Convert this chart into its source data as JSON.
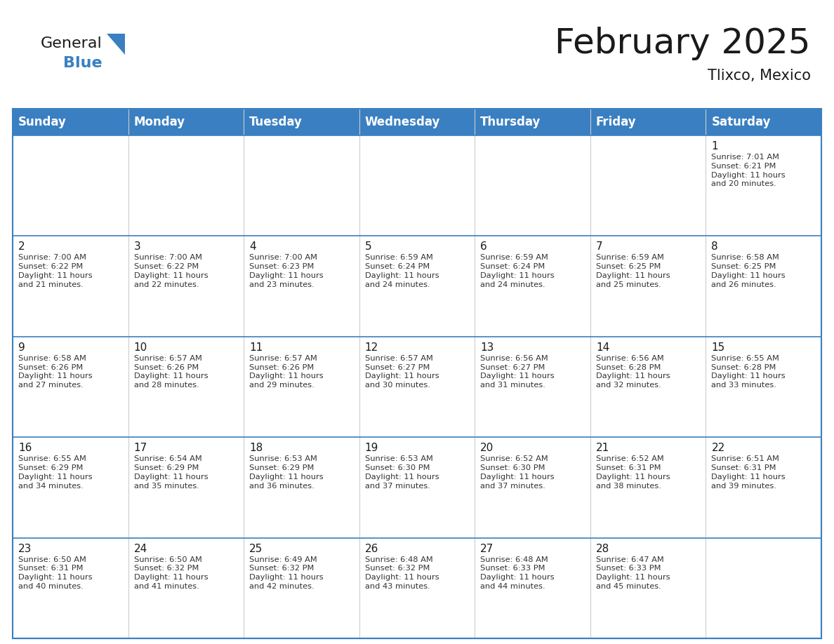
{
  "title": "February 2025",
  "subtitle": "Tlixco, Mexico",
  "header_bg_color": "#3a7fc1",
  "header_text_color": "#ffffff",
  "border_color": "#3a7fc1",
  "row_sep_color": "#3a7fc1",
  "col_sep_color": "#cccccc",
  "day_headers": [
    "Sunday",
    "Monday",
    "Tuesday",
    "Wednesday",
    "Thursday",
    "Friday",
    "Saturday"
  ],
  "title_fontsize": 36,
  "subtitle_fontsize": 15,
  "header_fontsize": 12,
  "day_num_fontsize": 11,
  "cell_text_fontsize": 8.2,
  "logo_general_color": "#1a1a1a",
  "logo_blue_color": "#3a7fc1",
  "logo_triangle_color": "#3a7fc1",
  "calendar_data": [
    [
      {
        "day": null
      },
      {
        "day": null
      },
      {
        "day": null
      },
      {
        "day": null
      },
      {
        "day": null
      },
      {
        "day": null
      },
      {
        "day": 1,
        "sunrise": "7:01 AM",
        "sunset": "6:21 PM",
        "daylight": "11 hours and 20 minutes."
      }
    ],
    [
      {
        "day": 2,
        "sunrise": "7:00 AM",
        "sunset": "6:22 PM",
        "daylight": "11 hours and 21 minutes."
      },
      {
        "day": 3,
        "sunrise": "7:00 AM",
        "sunset": "6:22 PM",
        "daylight": "11 hours and 22 minutes."
      },
      {
        "day": 4,
        "sunrise": "7:00 AM",
        "sunset": "6:23 PM",
        "daylight": "11 hours and 23 minutes."
      },
      {
        "day": 5,
        "sunrise": "6:59 AM",
        "sunset": "6:24 PM",
        "daylight": "11 hours and 24 minutes."
      },
      {
        "day": 6,
        "sunrise": "6:59 AM",
        "sunset": "6:24 PM",
        "daylight": "11 hours and 24 minutes."
      },
      {
        "day": 7,
        "sunrise": "6:59 AM",
        "sunset": "6:25 PM",
        "daylight": "11 hours and 25 minutes."
      },
      {
        "day": 8,
        "sunrise": "6:58 AM",
        "sunset": "6:25 PM",
        "daylight": "11 hours and 26 minutes."
      }
    ],
    [
      {
        "day": 9,
        "sunrise": "6:58 AM",
        "sunset": "6:26 PM",
        "daylight": "11 hours and 27 minutes."
      },
      {
        "day": 10,
        "sunrise": "6:57 AM",
        "sunset": "6:26 PM",
        "daylight": "11 hours and 28 minutes."
      },
      {
        "day": 11,
        "sunrise": "6:57 AM",
        "sunset": "6:26 PM",
        "daylight": "11 hours and 29 minutes."
      },
      {
        "day": 12,
        "sunrise": "6:57 AM",
        "sunset": "6:27 PM",
        "daylight": "11 hours and 30 minutes."
      },
      {
        "day": 13,
        "sunrise": "6:56 AM",
        "sunset": "6:27 PM",
        "daylight": "11 hours and 31 minutes."
      },
      {
        "day": 14,
        "sunrise": "6:56 AM",
        "sunset": "6:28 PM",
        "daylight": "11 hours and 32 minutes."
      },
      {
        "day": 15,
        "sunrise": "6:55 AM",
        "sunset": "6:28 PM",
        "daylight": "11 hours and 33 minutes."
      }
    ],
    [
      {
        "day": 16,
        "sunrise": "6:55 AM",
        "sunset": "6:29 PM",
        "daylight": "11 hours and 34 minutes."
      },
      {
        "day": 17,
        "sunrise": "6:54 AM",
        "sunset": "6:29 PM",
        "daylight": "11 hours and 35 minutes."
      },
      {
        "day": 18,
        "sunrise": "6:53 AM",
        "sunset": "6:29 PM",
        "daylight": "11 hours and 36 minutes."
      },
      {
        "day": 19,
        "sunrise": "6:53 AM",
        "sunset": "6:30 PM",
        "daylight": "11 hours and 37 minutes."
      },
      {
        "day": 20,
        "sunrise": "6:52 AM",
        "sunset": "6:30 PM",
        "daylight": "11 hours and 37 minutes."
      },
      {
        "day": 21,
        "sunrise": "6:52 AM",
        "sunset": "6:31 PM",
        "daylight": "11 hours and 38 minutes."
      },
      {
        "day": 22,
        "sunrise": "6:51 AM",
        "sunset": "6:31 PM",
        "daylight": "11 hours and 39 minutes."
      }
    ],
    [
      {
        "day": 23,
        "sunrise": "6:50 AM",
        "sunset": "6:31 PM",
        "daylight": "11 hours and 40 minutes."
      },
      {
        "day": 24,
        "sunrise": "6:50 AM",
        "sunset": "6:32 PM",
        "daylight": "11 hours and 41 minutes."
      },
      {
        "day": 25,
        "sunrise": "6:49 AM",
        "sunset": "6:32 PM",
        "daylight": "11 hours and 42 minutes."
      },
      {
        "day": 26,
        "sunrise": "6:48 AM",
        "sunset": "6:32 PM",
        "daylight": "11 hours and 43 minutes."
      },
      {
        "day": 27,
        "sunrise": "6:48 AM",
        "sunset": "6:33 PM",
        "daylight": "11 hours and 44 minutes."
      },
      {
        "day": 28,
        "sunrise": "6:47 AM",
        "sunset": "6:33 PM",
        "daylight": "11 hours and 45 minutes."
      },
      {
        "day": null
      }
    ]
  ]
}
